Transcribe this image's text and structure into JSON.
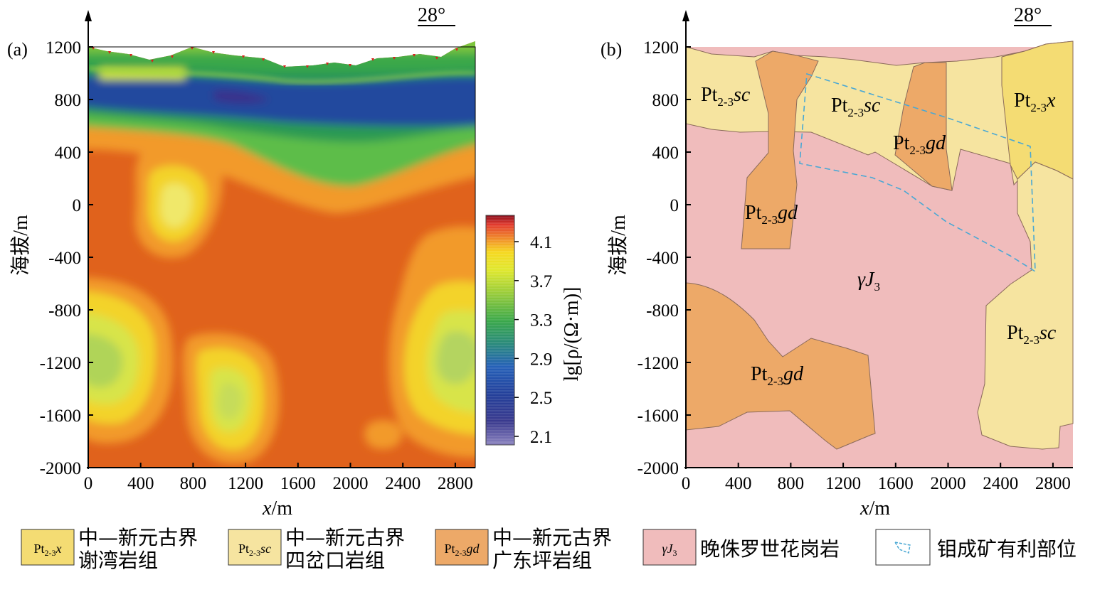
{
  "figure": {
    "panel_a": {
      "label": "(a)",
      "orientation": "28°",
      "ylabel": "海拔/m",
      "xlabel_var": "x",
      "xlabel_unit": "/m",
      "yticks": [
        "1200",
        "800",
        "400",
        "0",
        "-400",
        "-800",
        "-1200",
        "-1600",
        "-2000"
      ],
      "xticks": [
        "0",
        "400",
        "800",
        "1200",
        "1600",
        "2000",
        "2400",
        "2800"
      ],
      "colorbar": {
        "label": "lg[ρ/(Ω·m)]",
        "ticks": [
          "4.1",
          "3.7",
          "3.3",
          "2.9",
          "2.5",
          "2.1"
        ],
        "colors": [
          "#d6363a",
          "#f2d21a",
          "#e4ea2a",
          "#7cc43e",
          "#2e9a4a",
          "#1f5cb0",
          "#283a8c",
          "#7a6aae"
        ]
      }
    },
    "panel_b": {
      "label": "(b)",
      "orientation": "28°",
      "ylabel": "海拔/m",
      "xlabel_var": "x",
      "xlabel_unit": "/m",
      "yticks": [
        "1200",
        "800",
        "400",
        "0",
        "-400",
        "-800",
        "-1200",
        "-1600",
        "-2000"
      ],
      "xticks": [
        "0",
        "400",
        "800",
        "1200",
        "1600",
        "2000",
        "2400",
        "2800"
      ],
      "units": [
        {
          "base": "Pt",
          "sub": "2-3",
          "suffix": "sc"
        },
        {
          "base": "Pt",
          "sub": "2-3",
          "suffix": "sc"
        },
        {
          "base": "Pt",
          "sub": "2-3",
          "suffix": "x"
        },
        {
          "base": "Pt",
          "sub": "2-3",
          "suffix": "gd"
        },
        {
          "base": "Pt",
          "sub": "2-3",
          "suffix": "gd"
        },
        {
          "base": "γJ",
          "sub": "3",
          "suffix": ""
        },
        {
          "base": "Pt",
          "sub": "2-3",
          "suffix": "sc"
        },
        {
          "base": "Pt",
          "sub": "2-3",
          "suffix": "gd"
        }
      ]
    },
    "legend": [
      {
        "swatch_base": "Pt",
        "swatch_sub": "2-3",
        "swatch_suffix": "x",
        "line1": "中—新元古界",
        "line2": "谢湾岩组",
        "color": "#f4dc73"
      },
      {
        "swatch_base": "Pt",
        "swatch_sub": "2-3",
        "swatch_suffix": "sc",
        "line1": "中—新元古界",
        "line2": "四岔口岩组",
        "color": "#f6e4a0"
      },
      {
        "swatch_base": "Pt",
        "swatch_sub": "2-3",
        "swatch_suffix": "gd",
        "line1": "中—新元古界",
        "line2": "广东坪岩组",
        "color": "#eda968"
      },
      {
        "swatch_base": "γJ",
        "swatch_sub": "3",
        "swatch_suffix": "",
        "line1": "晚侏罗世花岗岩",
        "line2": "",
        "color": "#f0bcbc"
      },
      {
        "swatch_base": "",
        "swatch_sub": "",
        "swatch_suffix": "",
        "line1": "钼成矿有利部位",
        "line2": "",
        "color": "#4aa8d4"
      }
    ]
  }
}
